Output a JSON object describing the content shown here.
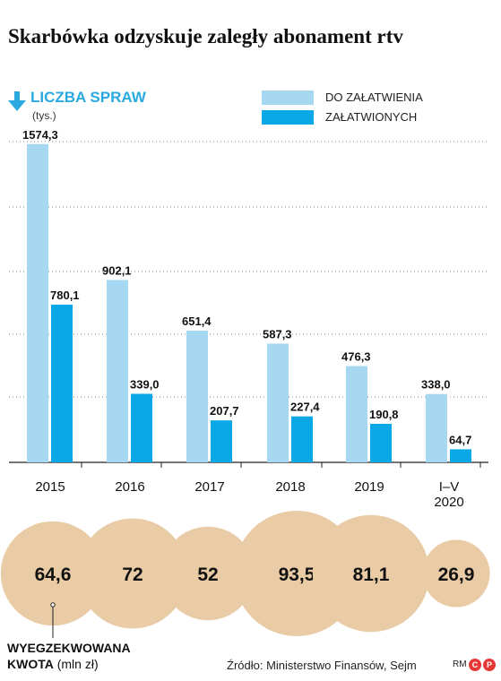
{
  "title": "Skarbówka odzyskuje zaległy abonament rtv",
  "y_axis": {
    "title": "LICZBA SPRAW",
    "unit": "(tys.)"
  },
  "legend": [
    {
      "label": "DO ZAŁATWIENIA",
      "color": "#a7d8f1"
    },
    {
      "label": "ZAŁATWIONYCH",
      "color": "#0aa8e6"
    }
  ],
  "chart_data": {
    "type": "bar",
    "categories": [
      "2015",
      "2016",
      "2017",
      "2018",
      "2019",
      "I–V\n2020"
    ],
    "series": [
      {
        "name": "DO ZAŁATWIENIA",
        "values": [
          1574.3,
          902.1,
          651.4,
          587.3,
          476.3,
          338.0
        ],
        "labels": [
          "1574,3",
          "902,1",
          "651,4",
          "587,3",
          "476,3",
          "338,0"
        ]
      },
      {
        "name": "ZAŁATWIONYCH",
        "values": [
          780.1,
          339.0,
          207.7,
          227.4,
          190.8,
          64.7
        ],
        "labels": [
          "780,1",
          "339,0",
          "207,7",
          "227,4",
          "190,8",
          "64,7"
        ]
      }
    ],
    "ylim": [
      0,
      1600
    ],
    "grid": true
  },
  "bubbles": {
    "values": [
      64.6,
      72,
      52,
      93.5,
      81.1,
      26.9
    ],
    "labels": [
      "64,6",
      "72",
      "52",
      "93,5",
      "81,1",
      "26,9"
    ],
    "color": "#e9cba6",
    "label_bold": "WYEGZEKWOWANA KWOTA",
    "label_unit": "(mln zł)"
  },
  "source": "Źródło: Ministerstwo Finansów, Sejm",
  "credits": "RM"
}
